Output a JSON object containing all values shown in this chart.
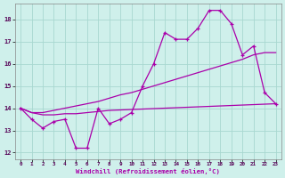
{
  "xlabel": "Windchill (Refroidissement éolien,°C)",
  "background_color": "#cff0eb",
  "grid_color": "#a8d8d0",
  "line_color": "#aa00aa",
  "xlim": [
    -0.5,
    23.5
  ],
  "ylim": [
    11.7,
    18.7
  ],
  "xticks": [
    0,
    1,
    2,
    3,
    4,
    5,
    6,
    7,
    8,
    9,
    10,
    11,
    12,
    13,
    14,
    15,
    16,
    17,
    18,
    19,
    20,
    21,
    22,
    23
  ],
  "yticks": [
    12,
    13,
    14,
    15,
    16,
    17,
    18
  ],
  "hours": [
    0,
    1,
    2,
    3,
    4,
    5,
    6,
    7,
    8,
    9,
    10,
    11,
    12,
    13,
    14,
    15,
    16,
    17,
    18,
    19,
    20,
    21,
    22,
    23
  ],
  "windchill": [
    14.0,
    13.5,
    13.1,
    13.4,
    13.5,
    12.2,
    12.2,
    14.0,
    13.3,
    13.5,
    13.8,
    15.0,
    16.0,
    17.4,
    17.1,
    17.1,
    17.6,
    18.4,
    18.4,
    17.8,
    16.4,
    16.8,
    14.7,
    14.2
  ],
  "line_lower": [
    14.0,
    13.8,
    13.7,
    13.7,
    13.75,
    13.75,
    13.8,
    13.85,
    13.9,
    13.92,
    13.94,
    13.96,
    13.98,
    14.0,
    14.02,
    14.04,
    14.06,
    14.08,
    14.1,
    14.12,
    14.14,
    14.16,
    14.18,
    14.2
  ],
  "line_upper": [
    14.0,
    13.8,
    13.8,
    13.9,
    14.0,
    14.1,
    14.2,
    14.3,
    14.45,
    14.6,
    14.7,
    14.85,
    15.0,
    15.15,
    15.3,
    15.45,
    15.6,
    15.75,
    15.9,
    16.05,
    16.2,
    16.4,
    16.5,
    16.5
  ]
}
